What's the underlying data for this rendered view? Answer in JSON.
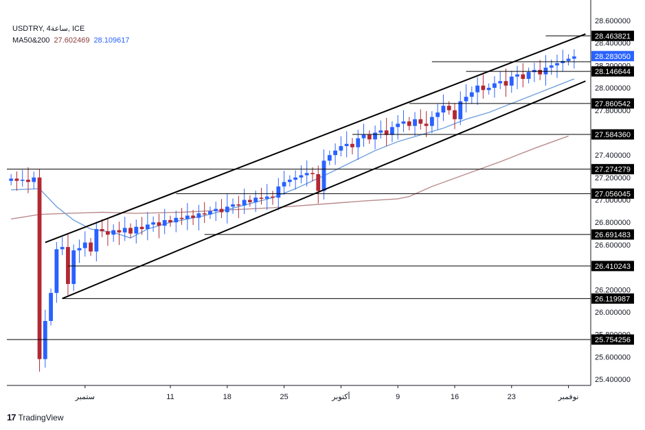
{
  "header": {
    "symbol_line": "USDTRY, 4ساعة, ICE",
    "ma_label": "MA50&200",
    "ma50_value": "27.602469",
    "ma200_value": "28.109617"
  },
  "brand": {
    "logo": "17",
    "name": "TradingView"
  },
  "colors": {
    "up_candle": "#2962ff",
    "down_candle": "#b22833",
    "ma_short": "#6fa0dc",
    "ma_long": "#b98a8a",
    "channel": "#000000",
    "level_line": "#000000",
    "price_tag_bg": "#000000",
    "current_price_bg": "#2962ff"
  },
  "chart_data": {
    "type": "candlestick",
    "yrange": [
      25.3,
      28.62
    ],
    "y_ticks": [
      "28.600000",
      "28.400000",
      "28.200000",
      "28.000000",
      "27.800000",
      "27.600000",
      "27.400000",
      "27.200000",
      "27.000000",
      "26.800000",
      "26.600000",
      "26.400000",
      "26.200000",
      "26.000000",
      "25.800000",
      "25.600000",
      "25.400000"
    ],
    "x_labels": [
      {
        "label": "ستمبر",
        "i": 13
      },
      {
        "label": "11",
        "i": 28
      },
      {
        "label": "18",
        "i": 38
      },
      {
        "label": "25",
        "i": 48
      },
      {
        "label": "أكتوبر",
        "i": 58
      },
      {
        "label": "9",
        "i": 68
      },
      {
        "label": "16",
        "i": 78
      },
      {
        "label": "23",
        "i": 88
      },
      {
        "label": "نوفمبر",
        "i": 98
      }
    ],
    "n_slots": 100,
    "horizontal_levels": [
      {
        "label": "28.463821",
        "value": 28.463821,
        "from_i": 94
      },
      {
        "label": "28.146644",
        "value": 28.146644,
        "from_i": 80
      },
      {
        "label": "27.860542",
        "value": 27.860542,
        "from_i": 70
      },
      {
        "label": "27.584360",
        "value": 27.58436,
        "from_i": 60
      },
      {
        "label": "27.274279",
        "value": 27.274279,
        "from_i": 0
      },
      {
        "label": "27.056045",
        "value": 27.056045,
        "from_i": 29
      },
      {
        "label": "26.691483",
        "value": 26.691483,
        "from_i": 34
      },
      {
        "label": "26.410243",
        "value": 26.410243,
        "from_i": 10
      },
      {
        "label": "26.119987",
        "value": 26.119987,
        "from_i": 9
      },
      {
        "label": "25.754256",
        "value": 25.754256,
        "from_i": 0
      }
    ],
    "level_27_9": {
      "value": 28.233,
      "from_i": 74
    },
    "current_price": {
      "label": "28.283050",
      "value": 28.28305
    },
    "channel": {
      "upper": [
        [
          6,
          26.62
        ],
        [
          101,
          28.48
        ]
      ],
      "lower": [
        [
          9,
          26.12
        ],
        [
          101,
          28.06
        ]
      ]
    },
    "ma_short_points": [
      [
        0,
        27.09
      ],
      [
        5,
        27.1
      ],
      [
        8,
        26.94
      ],
      [
        11,
        26.82
      ],
      [
        14,
        26.74
      ],
      [
        18,
        26.71
      ],
      [
        21,
        26.66
      ],
      [
        24,
        26.74
      ],
      [
        28,
        26.8
      ],
      [
        34,
        26.86
      ],
      [
        40,
        26.94
      ],
      [
        46,
        27.02
      ],
      [
        50,
        27.1
      ],
      [
        56,
        27.24
      ],
      [
        60,
        27.34
      ],
      [
        64,
        27.44
      ],
      [
        68,
        27.52
      ],
      [
        72,
        27.58
      ],
      [
        76,
        27.64
      ],
      [
        80,
        27.72
      ],
      [
        84,
        27.78
      ],
      [
        88,
        27.86
      ],
      [
        92,
        27.94
      ],
      [
        96,
        28.02
      ],
      [
        99,
        28.08
      ]
    ],
    "ma_long_points": [
      [
        0,
        26.83
      ],
      [
        5,
        26.87
      ],
      [
        10,
        26.88
      ],
      [
        16,
        26.89
      ],
      [
        22,
        26.88
      ],
      [
        30,
        26.89
      ],
      [
        38,
        26.91
      ],
      [
        46,
        26.93
      ],
      [
        54,
        26.96
      ],
      [
        62,
        26.99
      ],
      [
        68,
        27.01
      ],
      [
        70,
        27.03
      ],
      [
        74,
        27.12
      ],
      [
        80,
        27.23
      ],
      [
        86,
        27.34
      ],
      [
        92,
        27.46
      ],
      [
        98,
        27.57
      ]
    ],
    "closes": [
      27.19,
      27.17,
      27.18,
      27.16,
      27.2,
      25.58,
      25.92,
      26.17,
      26.56,
      26.58,
      26.25,
      26.55,
      26.57,
      26.62,
      26.54,
      26.74,
      26.72,
      26.69,
      26.73,
      26.71,
      26.75,
      26.7,
      26.76,
      26.74,
      26.78,
      26.8,
      26.77,
      26.82,
      26.8,
      26.84,
      26.83,
      26.86,
      26.84,
      26.88,
      26.87,
      26.9,
      26.92,
      26.89,
      26.94,
      26.96,
      26.95,
      27.0,
      26.98,
      27.02,
      27.01,
      27.03,
      27.02,
      27.12,
      27.16,
      27.18,
      27.2,
      27.22,
      27.24,
      27.23,
      27.08,
      27.35,
      27.4,
      27.44,
      27.48,
      27.5,
      27.47,
      27.55,
      27.58,
      27.54,
      27.6,
      27.62,
      27.58,
      27.65,
      27.68,
      27.7,
      27.66,
      27.72,
      27.68,
      27.66,
      27.74,
      27.78,
      27.84,
      27.8,
      27.72,
      27.88,
      27.92,
      27.96,
      28.02,
      27.98,
      28.0,
      28.04,
      28.06,
      28.02,
      28.1,
      28.12,
      28.08,
      28.14,
      28.16,
      28.12,
      28.18,
      28.2,
      28.22,
      28.24,
      28.26,
      28.28
    ]
  }
}
